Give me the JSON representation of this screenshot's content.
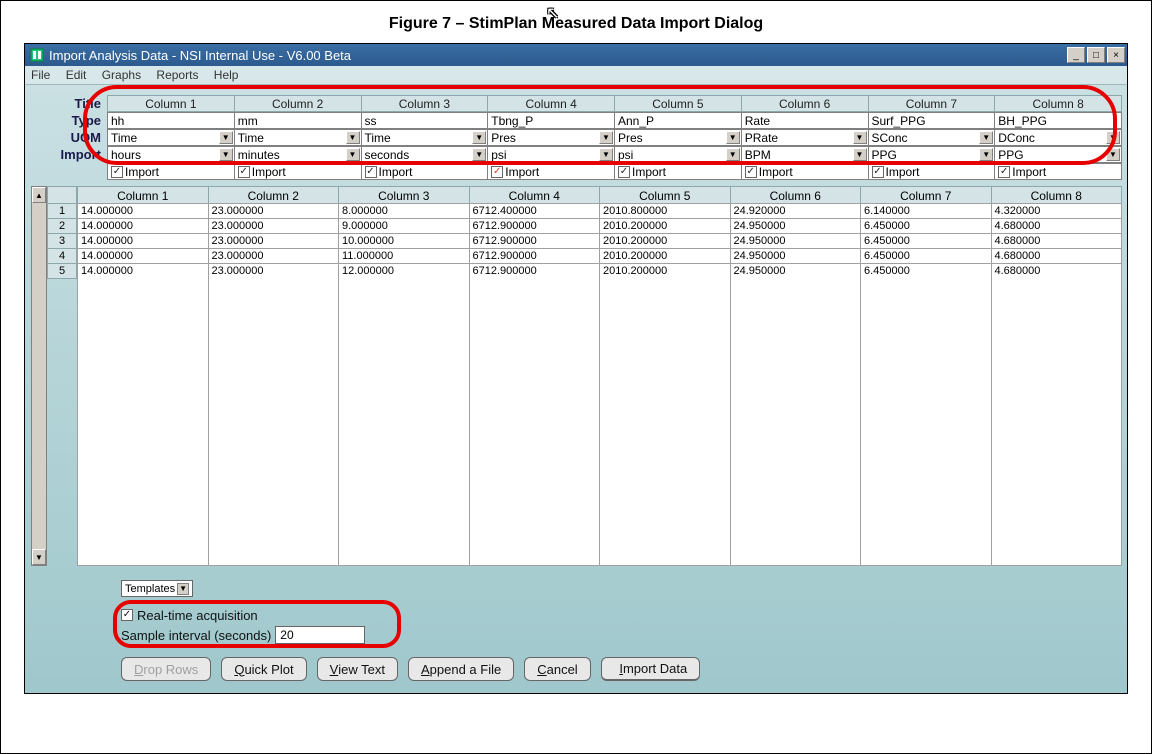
{
  "caption": "Figure 7 – StimPlan Measured Data Import Dialog",
  "window": {
    "title": "Import Analysis Data - NSI Internal Use - V6.00 Beta"
  },
  "menu": {
    "file": "File",
    "edit": "Edit",
    "graphs": "Graphs",
    "reports": "Reports",
    "help": "Help"
  },
  "row_labels": {
    "title": "Title",
    "type": "Type",
    "uom": "UOM",
    "import": "Import"
  },
  "columns": [
    {
      "header": "Column 1",
      "title": "hh",
      "type": "Time",
      "uom": "hours",
      "import": true,
      "import_label": "Import"
    },
    {
      "header": "Column 2",
      "title": "mm",
      "type": "Time",
      "uom": "minutes",
      "import": true,
      "import_label": "Import"
    },
    {
      "header": "Column 3",
      "title": "ss",
      "type": "Time",
      "uom": "seconds",
      "import": true,
      "import_label": "Import"
    },
    {
      "header": "Column 4",
      "title": "Tbng_P",
      "type": "Pres",
      "uom": "psi",
      "import": true,
      "import_label": "Import",
      "import_color": "#d04020"
    },
    {
      "header": "Column 5",
      "title": "Ann_P",
      "type": "Pres",
      "uom": "psi",
      "import": true,
      "import_label": "Import"
    },
    {
      "header": "Column 6",
      "title": "Rate",
      "type": "PRate",
      "uom": "BPM",
      "import": true,
      "import_label": "Import"
    },
    {
      "header": "Column 7",
      "title": "Surf_PPG",
      "type": "SConc",
      "uom": "PPG",
      "import": true,
      "import_label": "Import"
    },
    {
      "header": "Column 8",
      "title": "BH_PPG",
      "type": "DConc",
      "uom": "PPG",
      "import": true,
      "import_label": "Import"
    }
  ],
  "data_headers": [
    "Column 1",
    "Column 2",
    "Column 3",
    "Column 4",
    "Column 5",
    "Column 6",
    "Column 7",
    "Column 8"
  ],
  "rows": [
    [
      "14.000000",
      "23.000000",
      "8.000000",
      "6712.400000",
      "2010.800000",
      "24.920000",
      "6.140000",
      "4.320000"
    ],
    [
      "14.000000",
      "23.000000",
      "9.000000",
      "6712.900000",
      "2010.200000",
      "24.950000",
      "6.450000",
      "4.680000"
    ],
    [
      "14.000000",
      "23.000000",
      "10.000000",
      "6712.900000",
      "2010.200000",
      "24.950000",
      "6.450000",
      "4.680000"
    ],
    [
      "14.000000",
      "23.000000",
      "11.000000",
      "6712.900000",
      "2010.200000",
      "24.950000",
      "6.450000",
      "4.680000"
    ],
    [
      "14.000000",
      "23.000000",
      "12.000000",
      "6712.900000",
      "2010.200000",
      "24.950000",
      "6.450000",
      "4.680000"
    ]
  ],
  "row_nums": [
    "1",
    "2",
    "3",
    "4",
    "5"
  ],
  "templates_label": "Templates",
  "realtime": {
    "label": "Real-time acquisition",
    "checked": true
  },
  "sample_interval": {
    "label": "Sample interval (seconds)",
    "value": "20"
  },
  "buttons": {
    "drop_rows": "Drop Rows",
    "quick_plot": "Quick Plot",
    "view_text": "View Text",
    "append_file": "Append a File",
    "cancel": "Cancel",
    "import_data": "Import Data"
  },
  "colors": {
    "annotation": "#e60000",
    "titlebar_bg": "#3a6ea5",
    "window_bg": "#b5d4d8"
  }
}
